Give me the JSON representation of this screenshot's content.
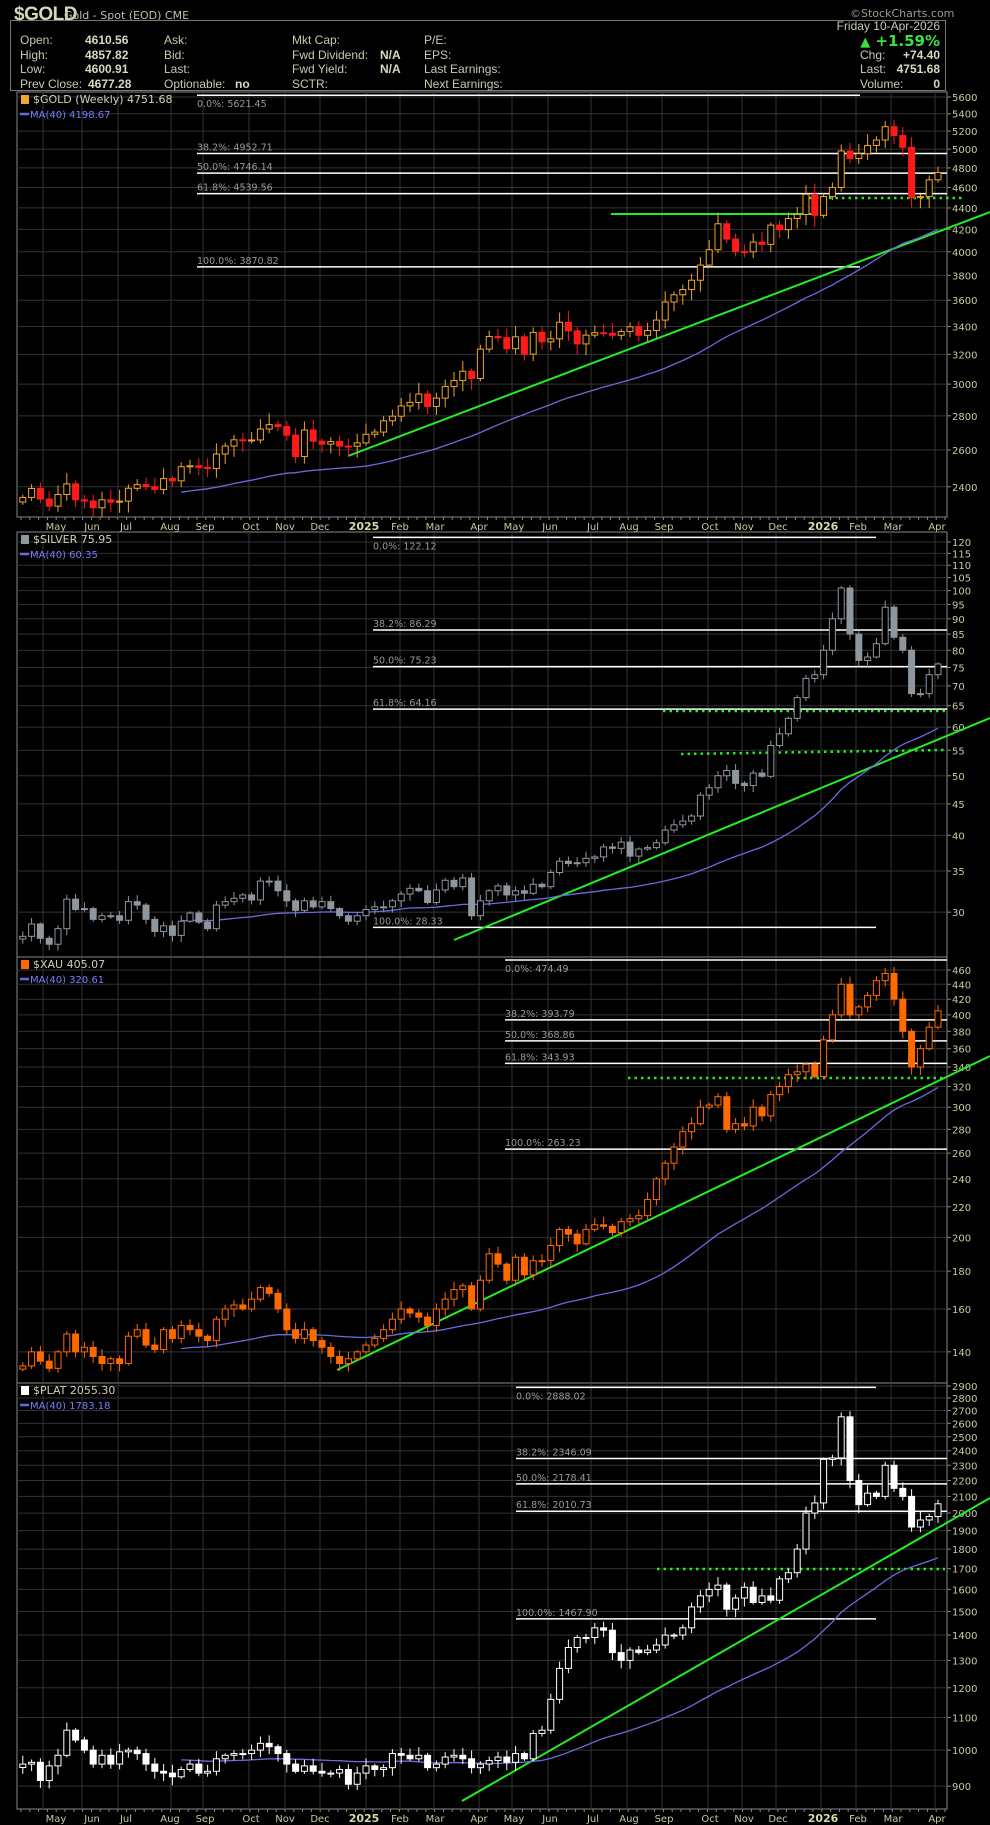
{
  "header": {
    "symbol": "$GOLD",
    "description": "Gold - Spot (EOD) CME",
    "copyright": "©StockCharts.com",
    "date": "Friday 10-Apr-2026",
    "change_pct": "+1.59%",
    "fields": {
      "open_label": "Open:",
      "open": "4610.56",
      "high_label": "High:",
      "high": "4857.82",
      "low_label": "Low:",
      "low": "4600.91",
      "prev_close_label": "Prev Close:",
      "prev_close": "4677.28",
      "ask_label": "Ask:",
      "bid_label": "Bid:",
      "last_label_mid": "Last:",
      "optionable_label": "Optionable:",
      "optionable": "no",
      "mkt_cap_label": "Mkt Cap:",
      "fwd_dividend_label": "Fwd Dividend:",
      "fwd_dividend": "N/A",
      "fwd_yield_label": "Fwd Yield:",
      "fwd_yield": "N/A",
      "sctr_label": "SCTR:",
      "pe_label": "P/E:",
      "eps_label": "EPS:",
      "last_earnings_label": "Last Earnings:",
      "next_earnings_label": "Next Earnings:",
      "chg_label": "Chg:",
      "chg": "+74.40",
      "last_label": "Last:",
      "last": "4751.68",
      "volume_label": "Volume:",
      "volume": "0"
    }
  },
  "x_axis_labels": [
    "May",
    "Jun",
    "Jul",
    "Aug",
    "Sep",
    "Oct",
    "Nov",
    "Dec",
    "2025",
    "Feb",
    "Mar",
    "Apr",
    "May",
    "Jun",
    "Jul",
    "Aug",
    "Sep",
    "Oct",
    "Nov",
    "Dec",
    "2026",
    "Feb",
    "Mar",
    "Apr"
  ],
  "chart_data": [
    {
      "type": "candlestick",
      "name": "$GOLD (Weekly) 4751.68",
      "ma_label": "MA(40) 4198.67",
      "scale": "log",
      "ylim": [
        2250,
        5650
      ],
      "yticks": [
        2400,
        2600,
        2800,
        3000,
        3200,
        3400,
        3600,
        3800,
        4000,
        4200,
        4400,
        4600,
        4800,
        5000,
        5200,
        5400,
        5600
      ],
      "colors": {
        "up": "#f0a628",
        "down": "#ff1a1a",
        "ma": "#6a6ae0"
      },
      "fib": [
        [
          "0.0%: 5621.45",
          5621.45
        ],
        [
          "38.2%: 4952.71",
          4952.71
        ],
        [
          "50.0%: 4746.14",
          4746.14
        ],
        [
          "61.8%: 4539.56",
          4539.56
        ],
        [
          "100.0%: 3870.82",
          3870.82
        ]
      ],
      "start_week": "2024-04-12",
      "closes": [
        2345,
        2391,
        2337,
        2301,
        2360,
        2415,
        2333,
        2327,
        2293,
        2333,
        2321,
        2326,
        2392,
        2411,
        2400,
        2386,
        2443,
        2431,
        2507,
        2512,
        2503,
        2497,
        2577,
        2622,
        2658,
        2653,
        2657,
        2721,
        2747,
        2736,
        2685,
        2563,
        2715,
        2650,
        2633,
        2648,
        2622,
        2621,
        2640,
        2690,
        2703,
        2770,
        2798,
        2861,
        2883,
        2936,
        2858,
        2910,
        2984,
        3023,
        3085,
        3037,
        3237,
        3327,
        3319,
        3240,
        3325,
        3202,
        3357,
        3289,
        3310,
        3432,
        3368,
        3274,
        3337,
        3355,
        3350,
        3336,
        3363,
        3398,
        3336,
        3371,
        3448,
        3586,
        3643,
        3685,
        3760,
        3886,
        4018,
        4251,
        4112,
        4002,
        4000,
        4085,
        4065,
        4239,
        4197,
        4300,
        4338,
        4532,
        4330,
        4510,
        4600,
        4980,
        4900,
        4950,
        5040,
        5100,
        5250,
        5150,
        5020,
        4500,
        4510,
        4677,
        4752
      ]
    },
    {
      "type": "candlestick",
      "name": "$SILVER 75.95",
      "ma_label": "MA(40) 60.35",
      "scale": "log",
      "ylim": [
        25,
        123
      ],
      "yticks": [
        30,
        35,
        40,
        45,
        50,
        55,
        60,
        65,
        70,
        75,
        80,
        85,
        90,
        95,
        100,
        105,
        110,
        115,
        120
      ],
      "colors": {
        "up": "#8e969e",
        "down": "#8e969e",
        "ma": "#6a6ae0"
      },
      "fib": [
        [
          "0.0%: 122.12",
          122.12
        ],
        [
          "38.2%: 86.29",
          86.29
        ],
        [
          "50.0%: 75.23",
          75.23
        ],
        [
          "61.8%: 64.16",
          64.16
        ],
        [
          "100.0%: 28.33",
          28.33
        ]
      ],
      "start_week": "2024-04-12",
      "closes": [
        27.4,
        28.7,
        27.2,
        26.6,
        28.2,
        31.5,
        30.3,
        30.4,
        29.2,
        29.6,
        29.6,
        29.1,
        31.2,
        30.8,
        29.2,
        27.9,
        28.5,
        27.5,
        29.0,
        29.9,
        28.9,
        28.2,
        30.8,
        31.2,
        31.6,
        32.0,
        31.4,
        33.7,
        33.7,
        32.5,
        31.3,
        30.2,
        31.3,
        30.6,
        31.2,
        30.4,
        29.6,
        29.0,
        29.6,
        30.3,
        30.6,
        30.6,
        31.3,
        32.1,
        32.8,
        32.5,
        31.1,
        32.6,
        33.8,
        33.0,
        34.1,
        29.6,
        31.3,
        32.5,
        33.1,
        32.0,
        32.5,
        32.2,
        33.3,
        33.0,
        34.8,
        36.3,
        36.0,
        36.1,
        36.7,
        36.9,
        38.3,
        38.1,
        39.0,
        37.0,
        38.0,
        38.2,
        38.9,
        40.8,
        41.6,
        42.2,
        43.0,
        46.5,
        47.8,
        50.0,
        51.0,
        48.6,
        48.2,
        50.5,
        49.9,
        56.0,
        58.5,
        62.0,
        67.0,
        72.0,
        73,
        80,
        90,
        101,
        85,
        77,
        78,
        82,
        94,
        84,
        80,
        68,
        68,
        73,
        76
      ]
    },
    {
      "type": "candlestick",
      "name": "$XAU 405.07",
      "ma_label": "MA(40) 320.61",
      "scale": "log",
      "ylim": [
        125,
        475
      ],
      "yticks": [
        140,
        160,
        180,
        200,
        220,
        240,
        260,
        280,
        300,
        320,
        340,
        360,
        380,
        400,
        420,
        440,
        460
      ],
      "colors": {
        "up": "#ff6a00",
        "down": "#ff6a00",
        "ma": "#6a6ae0"
      },
      "fib": [
        [
          "0.0%: 474.49",
          474.49
        ],
        [
          "38.2%: 393.79",
          393.79
        ],
        [
          "50.0%: 368.86",
          368.86
        ],
        [
          "61.8%: 343.93",
          343.93
        ],
        [
          "100.0%: 263.23",
          263.23
        ]
      ],
      "start_week": "2024-04-12",
      "closes": [
        134,
        140,
        136,
        133,
        140,
        148,
        140,
        142,
        138,
        135,
        137,
        135,
        147,
        150,
        143,
        141,
        150,
        146,
        152,
        150,
        147,
        145,
        155,
        160,
        162,
        160,
        165,
        171,
        168,
        160,
        150,
        146,
        150,
        145,
        142,
        138,
        135,
        137,
        140,
        143,
        146,
        150,
        155,
        160,
        158,
        156,
        152,
        160,
        165,
        170,
        172,
        160,
        175,
        190,
        184,
        175,
        188,
        178,
        186,
        186,
        195,
        205,
        202,
        196,
        205,
        208,
        207,
        203,
        210,
        212,
        214,
        225,
        240,
        252,
        265,
        278,
        285,
        300,
        302,
        310,
        280,
        285,
        283,
        300,
        292,
        312,
        320,
        332,
        335,
        343,
        330,
        370,
        400,
        440,
        400,
        410,
        425,
        445,
        455,
        420,
        380,
        340,
        360,
        385,
        405
      ]
    },
    {
      "type": "candlestick",
      "name": "$PLAT 2055.30",
      "ma_label": "MA(40) 1783.18",
      "scale": "log",
      "ylim": [
        830,
        2910
      ],
      "yticks": [
        900,
        1000,
        1100,
        1200,
        1300,
        1400,
        1500,
        1600,
        1700,
        1800,
        1900,
        2000,
        2100,
        2200,
        2300,
        2400,
        2500,
        2600,
        2700,
        2800,
        2900
      ],
      "colors": {
        "up": "#ffffff",
        "down": "#ffffff",
        "ma": "#6a6ae0"
      },
      "fib": [
        [
          "0.0%: 2888.02",
          2888.02
        ],
        [
          "38.2%: 2346.09",
          2346.09
        ],
        [
          "50.0%: 2178.41",
          2178.41
        ],
        [
          "61.8%: 2010.73",
          2010.73
        ],
        [
          "100.0%: 1467.90",
          1467.9
        ]
      ],
      "start_week": "2024-04-12",
      "closes": [
        960,
        965,
        915,
        955,
        985,
        1060,
        1030,
        1000,
        960,
        985,
        960,
        995,
        1000,
        990,
        960,
        940,
        935,
        925,
        945,
        960,
        935,
        940,
        975,
        985,
        990,
        990,
        1000,
        1020,
        1010,
        990,
        960,
        940,
        955,
        940,
        935,
        935,
        945,
        905,
        935,
        955,
        945,
        950,
        990,
        985,
        975,
        985,
        950,
        960,
        980,
        985,
        975,
        950,
        960,
        970,
        980,
        965,
        990,
        975,
        1050,
        1060,
        1160,
        1270,
        1350,
        1390,
        1390,
        1430,
        1420,
        1330,
        1300,
        1340,
        1330,
        1340,
        1360,
        1400,
        1400,
        1430,
        1520,
        1570,
        1600,
        1620,
        1510,
        1560,
        1610,
        1540,
        1570,
        1550,
        1650,
        1680,
        1800,
        2000,
        2060,
        2340,
        2350,
        2650,
        2200,
        2050,
        2120,
        2100,
        2300,
        2150,
        2100,
        1920,
        1960,
        1980,
        2055
      ]
    }
  ]
}
